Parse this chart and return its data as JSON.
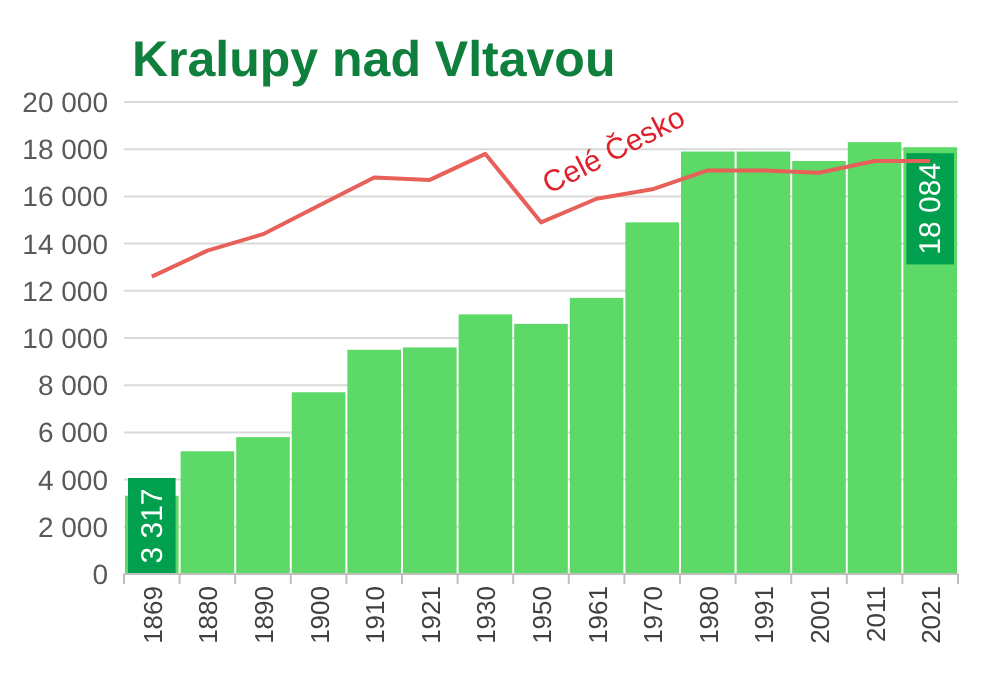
{
  "chart_data": {
    "type": "bar",
    "title": "Kralupy nad Vltavou",
    "categories": [
      "1869",
      "1880",
      "1890",
      "1900",
      "1910",
      "1921",
      "1930",
      "1950",
      "1961",
      "1970",
      "1980",
      "1991",
      "2001",
      "2011",
      "2021"
    ],
    "series": [
      {
        "color": "#5cd966",
        "values": [
          3317,
          5200,
          5800,
          7700,
          9500,
          9600,
          11000,
          10600,
          11700,
          14900,
          17900,
          17900,
          17500,
          18300,
          18084
        ],
        "value_labels": [
          "3 317",
          null,
          null,
          null,
          null,
          null,
          null,
          null,
          null,
          null,
          null,
          null,
          null,
          null,
          "18 084"
        ]
      },
      {
        "type": "line",
        "name": "Celé Česko",
        "color": "#e8605a",
        "values": [
          12600,
          13700,
          14400,
          15600,
          16800,
          16700,
          17800,
          14900,
          15900,
          16300,
          17100,
          17100,
          17000,
          17500,
          17500
        ]
      }
    ],
    "ylim": [
      0,
      20000
    ],
    "yticks": [
      {
        "value": 0,
        "label": "0"
      },
      {
        "value": 2000,
        "label": "2 000"
      },
      {
        "value": 4000,
        "label": "4 000"
      },
      {
        "value": 6000,
        "label": "6 000"
      },
      {
        "value": 8000,
        "label": "8 000"
      },
      {
        "value": 10000,
        "label": "10 000"
      },
      {
        "value": 12000,
        "label": "12 000"
      },
      {
        "value": 14000,
        "label": "14 000"
      },
      {
        "value": 16000,
        "label": "16 000"
      },
      {
        "value": 18000,
        "label": "18 000"
      },
      {
        "value": 20000,
        "label": "20 000"
      }
    ],
    "grid": "y"
  }
}
